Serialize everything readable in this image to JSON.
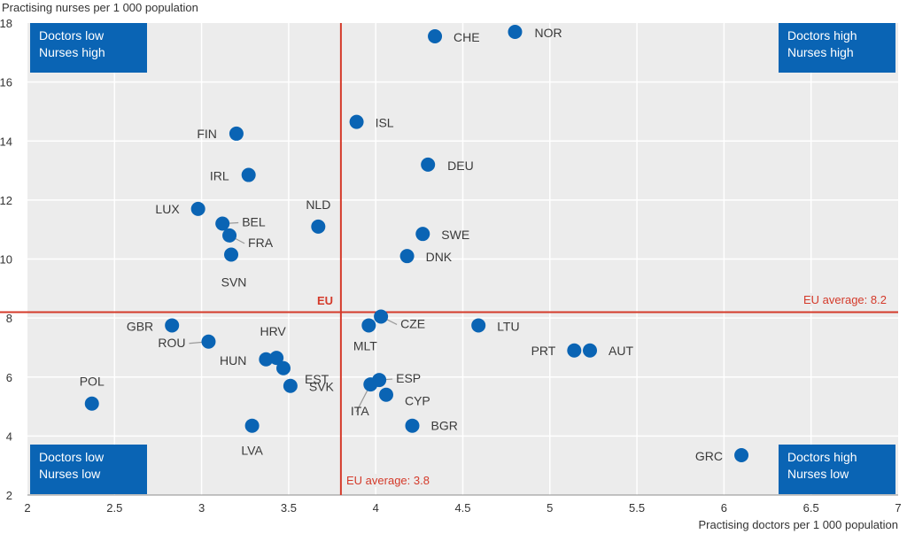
{
  "chart_data": {
    "type": "scatter",
    "ylabel": "Practising nurses per 1 000 population",
    "xlabel": "Practising doctors per 1 000 population",
    "xlim": [
      2,
      7
    ],
    "ylim": [
      2,
      18
    ],
    "xticks": [
      "2",
      "2.5",
      "3",
      "3.5",
      "4",
      "4.5",
      "5",
      "5.5",
      "6",
      "6.5",
      "7"
    ],
    "yticks": [
      "2",
      "4",
      "6",
      "8",
      "10",
      "12",
      "14",
      "16",
      "18"
    ],
    "grid": true,
    "eu_average": {
      "x": 3.8,
      "y": 8.2,
      "x_label": "EU average: 3.8",
      "y_label": "EU average: 8.2",
      "center_label": "EU"
    },
    "quadrants": {
      "top_left": [
        "Doctors low",
        "Nurses high"
      ],
      "top_right": [
        "Doctors high",
        "Nurses high"
      ],
      "bottom_left": [
        "Doctors low",
        "Nurses low"
      ],
      "bottom_right": [
        "Doctors high",
        "Nurses low"
      ]
    },
    "points": [
      {
        "label": "NOR",
        "x": 4.8,
        "y": 17.7
      },
      {
        "label": "CHE",
        "x": 4.34,
        "y": 17.55
      },
      {
        "label": "ISL",
        "x": 3.89,
        "y": 14.65
      },
      {
        "label": "FIN",
        "x": 3.2,
        "y": 14.25
      },
      {
        "label": "DEU",
        "x": 4.3,
        "y": 13.2
      },
      {
        "label": "IRL",
        "x": 3.27,
        "y": 12.85
      },
      {
        "label": "LUX",
        "x": 2.98,
        "y": 11.7
      },
      {
        "label": "BEL",
        "x": 3.12,
        "y": 11.2
      },
      {
        "label": "NLD",
        "x": 3.67,
        "y": 11.1
      },
      {
        "label": "SWE",
        "x": 4.27,
        "y": 10.85
      },
      {
        "label": "FRA",
        "x": 3.16,
        "y": 10.8
      },
      {
        "label": "SVN",
        "x": 3.17,
        "y": 10.15
      },
      {
        "label": "DNK",
        "x": 4.18,
        "y": 10.1
      },
      {
        "label": "CZE",
        "x": 4.03,
        "y": 8.05
      },
      {
        "label": "GBR",
        "x": 2.83,
        "y": 7.75
      },
      {
        "label": "LTU",
        "x": 4.59,
        "y": 7.75
      },
      {
        "label": "MLT",
        "x": 3.96,
        "y": 7.75
      },
      {
        "label": "ROU",
        "x": 3.04,
        "y": 7.2
      },
      {
        "label": "PRT",
        "x": 5.14,
        "y": 6.9
      },
      {
        "label": "AUT",
        "x": 5.23,
        "y": 6.9
      },
      {
        "label": "HRV",
        "x": 3.43,
        "y": 6.65
      },
      {
        "label": "HUN",
        "x": 3.37,
        "y": 6.6
      },
      {
        "label": "EST",
        "x": 3.47,
        "y": 6.3
      },
      {
        "label": "ESP",
        "x": 4.02,
        "y": 5.9
      },
      {
        "label": "ITA",
        "x": 3.97,
        "y": 5.75
      },
      {
        "label": "SVK",
        "x": 3.51,
        "y": 5.7
      },
      {
        "label": "CYP",
        "x": 4.06,
        "y": 5.4
      },
      {
        "label": "POL",
        "x": 2.37,
        "y": 5.1
      },
      {
        "label": "BGR",
        "x": 4.21,
        "y": 4.35
      },
      {
        "label": "LVA",
        "x": 3.29,
        "y": 4.35
      },
      {
        "label": "GRC",
        "x": 6.1,
        "y": 3.35
      }
    ]
  }
}
